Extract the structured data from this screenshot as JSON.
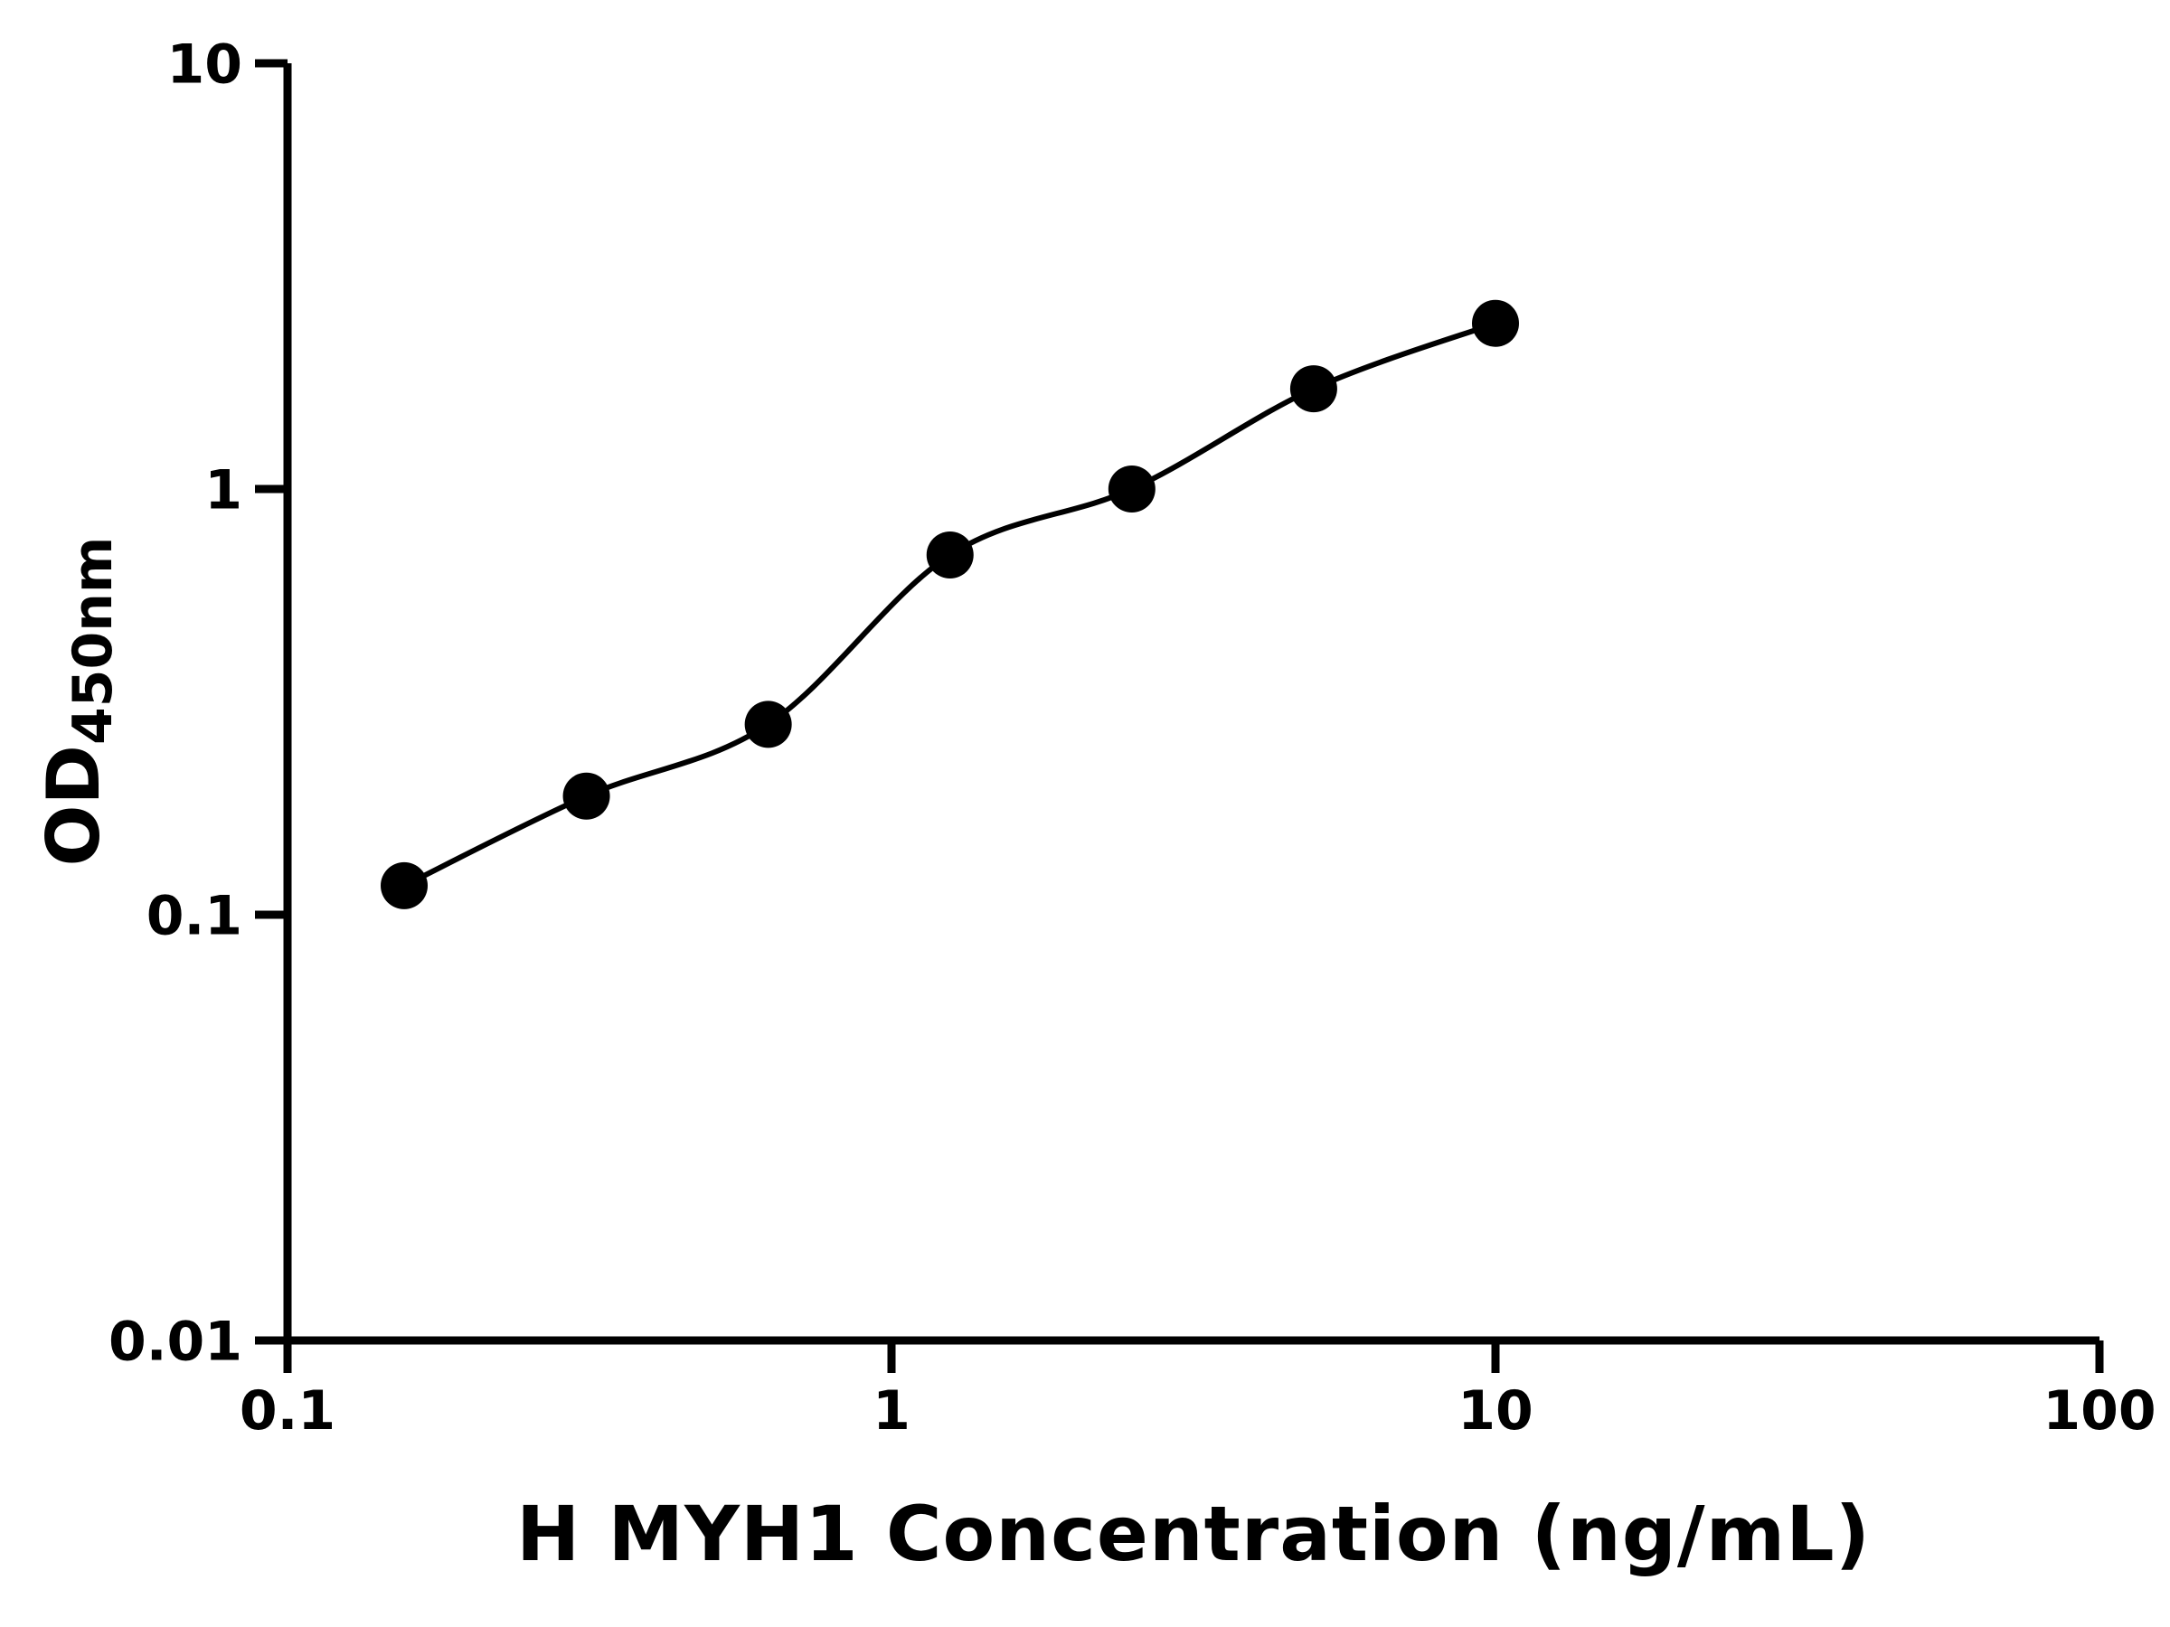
{
  "chart_data": {
    "type": "scatter",
    "title": "",
    "xlabel": "H MYH1 Concentration (ng/mL)",
    "ylabel_main": "OD",
    "ylabel_sub": "450nm",
    "x_scale": "log",
    "y_scale": "log",
    "xlim": [
      0.1,
      100
    ],
    "ylim": [
      0.01,
      10
    ],
    "x_ticks": [
      0.1,
      1,
      10,
      100
    ],
    "x_tick_labels": [
      "0.1",
      "1",
      "10",
      "100"
    ],
    "y_ticks": [
      0.01,
      0.1,
      1,
      10
    ],
    "y_tick_labels": [
      "0.01",
      "0.1",
      "1",
      "10"
    ],
    "x": [
      0.156,
      0.3125,
      0.625,
      1.25,
      2.5,
      5,
      10
    ],
    "y": [
      0.117,
      0.19,
      0.28,
      0.7,
      1.0,
      1.72,
      2.45
    ],
    "grid": false,
    "legend": "none",
    "marker_color": "#000000",
    "line_color": "#000000",
    "axis_color": "#000000",
    "curve": "smooth-fit"
  }
}
